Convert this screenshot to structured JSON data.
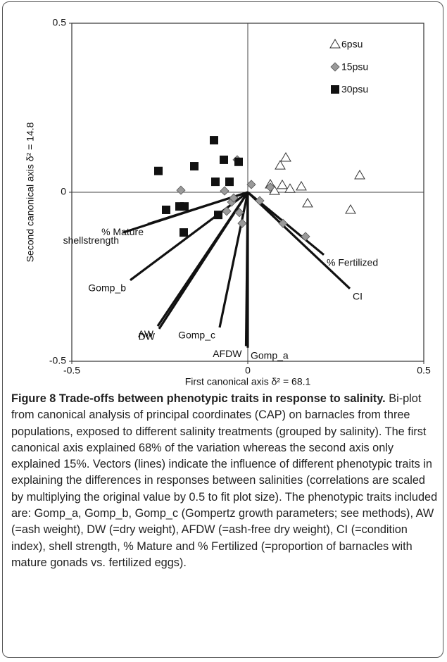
{
  "chart_data": {
    "type": "biplot",
    "x_label": "First canonical axis  δ² = 68.1",
    "y_label": "Second canonical axis  δ² = 14.8",
    "xlim": [
      -0.5,
      0.5
    ],
    "ylim": [
      -0.5,
      0.5
    ],
    "xticks": [
      -0.5,
      0,
      0.5
    ],
    "yticks": [
      -0.5,
      0,
      0.5
    ],
    "series": [
      {
        "name": "6psu",
        "marker": "triangle",
        "color": "#ffffff",
        "x": [
          0.108,
          0.092,
          0.064,
          0.076,
          0.098,
          0.12,
          0.152,
          0.17,
          0.318,
          0.292
        ],
        "values": [
          0.102,
          0.079,
          0.023,
          0.004,
          0.021,
          0.01,
          0.017,
          -0.033,
          0.05,
          -0.052
        ]
      },
      {
        "name": "15psu",
        "marker": "diamond",
        "color": "#9a9a9a",
        "x": [
          -0.03,
          -0.19,
          -0.066,
          -0.046,
          -0.06,
          -0.04,
          -0.024,
          -0.016,
          0.01,
          0.034,
          0.064,
          0.1,
          0.164
        ],
        "values": [
          0.096,
          0.006,
          0.004,
          -0.029,
          -0.056,
          -0.017,
          -0.06,
          -0.092,
          0.023,
          -0.025,
          0.015,
          -0.092,
          -0.131
        ]
      },
      {
        "name": "30psu",
        "marker": "square",
        "color": "#111111",
        "x": [
          -0.254,
          -0.152,
          -0.096,
          -0.068,
          -0.026,
          -0.092,
          -0.052,
          -0.232,
          -0.194,
          -0.18,
          -0.182,
          -0.084
        ],
        "values": [
          0.063,
          0.077,
          0.154,
          0.096,
          0.09,
          0.031,
          0.031,
          -0.052,
          -0.042,
          -0.042,
          -0.119,
          -0.067
        ]
      }
    ],
    "vectors": [
      {
        "name": "shellstrength",
        "x": -0.354,
        "y": -0.119
      },
      {
        "name": "% Mature",
        "x": -0.284,
        "y": -0.094
      },
      {
        "name": "Gomp_b",
        "x": -0.334,
        "y": -0.26
      },
      {
        "name": "AW",
        "x": -0.256,
        "y": -0.396
      },
      {
        "name": "DW",
        "x": -0.252,
        "y": -0.404
      },
      {
        "name": "Gomp_c",
        "x": -0.08,
        "y": -0.4
      },
      {
        "name": "AFDW",
        "x": -0.005,
        "y": -0.455
      },
      {
        "name": "Gomp_a",
        "x": 0.0,
        "y": -0.46
      },
      {
        "name": "% Fertilized",
        "x": 0.216,
        "y": -0.185
      },
      {
        "name": "CI",
        "x": 0.29,
        "y": -0.285
      }
    ]
  },
  "caption": {
    "label": "Figure 8",
    "title": "Trade-offs between phenotypic traits in response to salinity.",
    "text": "Bi-plot from canonical analysis of principal coordinates (CAP) on barnacles from three populations, exposed to different salinity treatments (grouped by salinity). The first canonical axis explained 68% of the variation whereas the second axis only explained 15%. Vectors (lines) indicate the influence of different phenotypic traits in explaining the differences in responses between salinities (correlations are scaled by multiplying the original value by 0.5 to fit plot size). The phenotypic traits included are: Gomp_a, Gomp_b, Gomp_c (Gompertz growth parameters; see methods), AW (=ash weight), DW (=dry weight), AFDW (=ash-free dry weight), CI (=condition index), shell strength, % Mature and % Fertilized (=proportion of barnacles with mature gonads vs. fertilized eggs)."
  }
}
